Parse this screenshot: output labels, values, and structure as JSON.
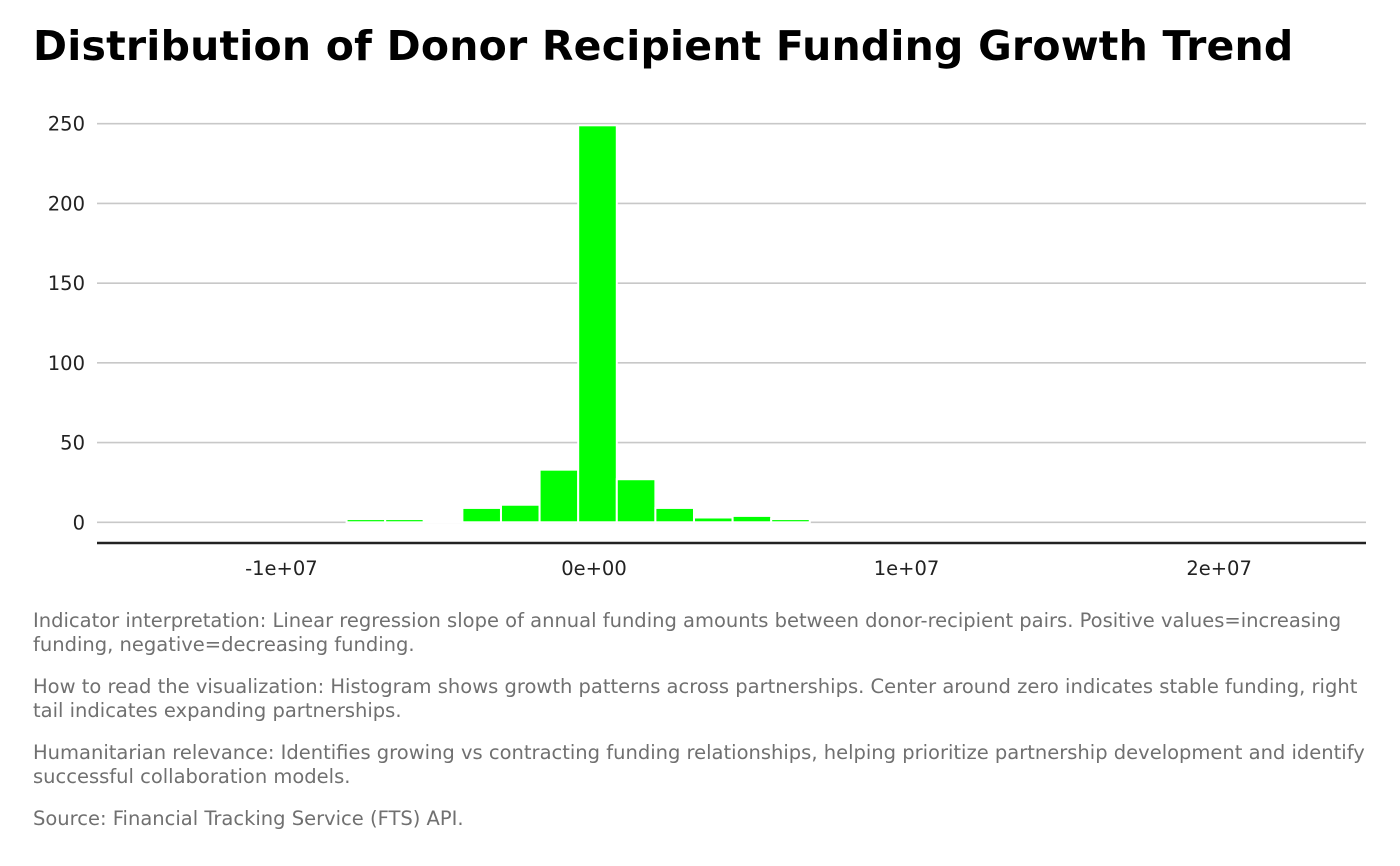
{
  "chart_data": {
    "type": "bar",
    "subtype": "histogram",
    "title": "Distribution of Donor Recipient Funding Growth Trend",
    "xlabel": "",
    "ylabel": "",
    "bin_start": -14090000,
    "bin_width": 1235000,
    "counts": [
      0,
      0,
      0,
      0,
      0,
      2,
      2,
      1,
      9,
      11,
      33,
      249,
      27,
      9,
      3,
      4,
      2,
      0,
      0,
      0,
      0,
      0,
      0,
      0,
      0,
      0,
      0,
      0,
      0,
      0
    ],
    "xlim": [
      -15900000,
      24700000
    ],
    "ylim": [
      -13,
      263
    ],
    "x_ticks": [
      {
        "value": -10000000,
        "label": "-1e+07"
      },
      {
        "value": 0,
        "label": "0e+00"
      },
      {
        "value": 10000000,
        "label": "1e+07"
      },
      {
        "value": 20000000,
        "label": "2e+07"
      }
    ],
    "y_ticks": [
      {
        "value": 0,
        "label": "0"
      },
      {
        "value": 50,
        "label": "50"
      },
      {
        "value": 100,
        "label": "100"
      },
      {
        "value": 150,
        "label": "150"
      },
      {
        "value": 200,
        "label": "200"
      },
      {
        "value": 250,
        "label": "250"
      }
    ],
    "grid": "horizontal",
    "bar_color": "#00FF00",
    "bar_edge_color": "#FFFFFF",
    "gridline_color": "#C8C8C8",
    "axis_color": "#222222"
  },
  "captions": [
    "Indicator interpretation: Linear regression slope of annual funding amounts between donor-recipient pairs. Positive values=increasing funding, negative=decreasing funding.",
    "How to read the visualization: Histogram shows growth patterns across partnerships. Center around zero indicates stable funding, right tail indicates expanding partnerships.",
    "Humanitarian relevance: Identifies growing vs contracting funding relationships, helping prioritize partnership development and identify successful collaboration models.",
    "Source: Financial Tracking Service (FTS) API."
  ]
}
